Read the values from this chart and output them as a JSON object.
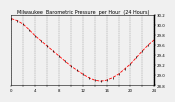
{
  "title": "Milwaukee  Barometric Pressure  per Hour  (24 Hours)",
  "bg_color": "#f0f0f0",
  "plot_bg_color": "#f0f0f0",
  "line_color": "#ff0000",
  "marker_color": "#000000",
  "grid_color": "#888888",
  "hours": [
    0,
    1,
    2,
    3,
    4,
    5,
    6,
    7,
    8,
    9,
    10,
    11,
    12,
    13,
    14,
    15,
    16,
    17,
    18,
    19,
    20,
    21,
    22,
    23,
    24
  ],
  "pressure": [
    30.12,
    30.08,
    30.01,
    29.9,
    29.78,
    29.68,
    29.58,
    29.48,
    29.38,
    29.28,
    29.18,
    29.1,
    29.02,
    28.95,
    28.9,
    28.88,
    28.9,
    28.95,
    29.02,
    29.12,
    29.22,
    29.35,
    29.48,
    29.6,
    29.7
  ],
  "ylim_min": 28.8,
  "ylim_max": 30.2,
  "yticks": [
    28.8,
    29.0,
    29.2,
    29.4,
    29.6,
    29.8,
    30.0,
    30.2
  ],
  "ytick_labels": [
    "28.8",
    "29.0",
    "29.2",
    "29.4",
    "29.6",
    "29.8",
    "30.0",
    "30.2"
  ],
  "xlim": [
    0,
    24
  ],
  "xticks": [
    0,
    2,
    4,
    6,
    8,
    10,
    12,
    14,
    16,
    18,
    20,
    22,
    24
  ],
  "title_fontsize": 3.5,
  "tick_fontsize": 2.8,
  "line_width": 0.6,
  "marker_size": 1.5,
  "marker_ew": 0.5,
  "grid_linewidth": 0.3,
  "spine_lw": 0.4
}
